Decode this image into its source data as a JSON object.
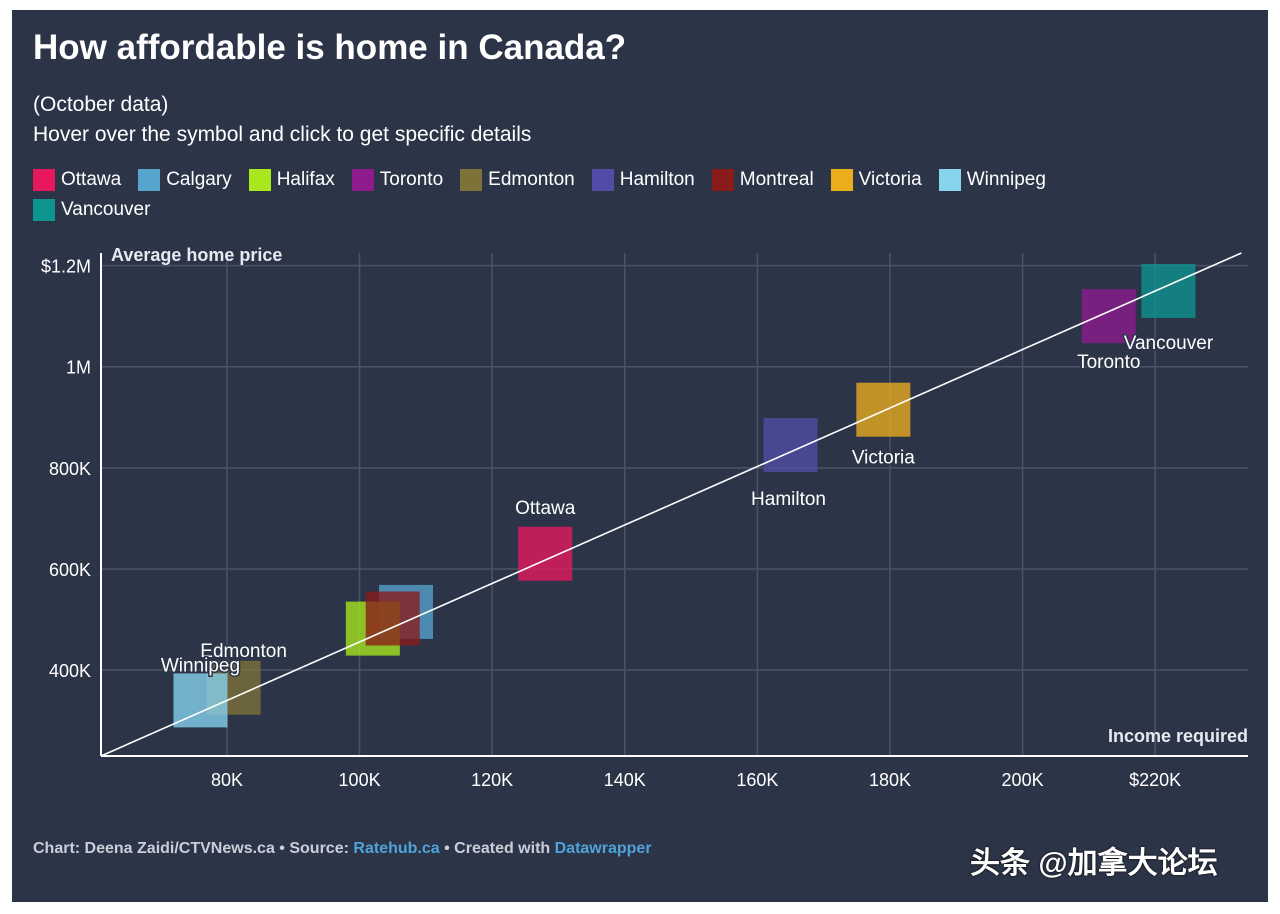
{
  "title": "How affordable is home in Canada?",
  "subtitle_lines": [
    "(October data)",
    "Hover over the symbol and click to get specific details"
  ],
  "footer": {
    "chart_credit": "Chart: Deena Zaidi/CTVNews.ca",
    "sep": "•",
    "source_label": "Source:",
    "source_link": "Ratehub.ca",
    "created_label": "Created with",
    "created_link": "Datawrapper"
  },
  "watermark": "头条 @加拿大论坛",
  "colors": {
    "background": "#2c3548",
    "grid": "#4b5467",
    "axis": "#ffffff",
    "trend": "#ffffff"
  },
  "chart_data": {
    "type": "scatter",
    "xlabel": "Income required",
    "ylabel": "Average home price",
    "xlim": [
      61000,
      234000
    ],
    "ylim": [
      230000,
      1225000
    ],
    "x_ticks": [
      80000,
      100000,
      120000,
      140000,
      160000,
      180000,
      200000,
      220000
    ],
    "x_tick_labels": [
      "80K",
      "100K",
      "120K",
      "140K",
      "160K",
      "180K",
      "200K",
      "$220K"
    ],
    "y_ticks": [
      400000,
      600000,
      800000,
      1000000,
      1200000
    ],
    "y_tick_labels": [
      "400K",
      "600K",
      "800K",
      "1M",
      "$1.2M"
    ],
    "grid": true,
    "legend_position": "top",
    "trend_line": [
      [
        61000,
        230000
      ],
      [
        233000,
        1225000
      ]
    ],
    "points": [
      {
        "name": "Ottawa",
        "x": 128000,
        "y": 630000,
        "color": "#e8185f",
        "label": "Ottawa"
      },
      {
        "name": "Calgary",
        "x": 107000,
        "y": 515000,
        "color": "#56a3cc",
        "label": ""
      },
      {
        "name": "Halifax",
        "x": 102000,
        "y": 482000,
        "color": "#a9e81c",
        "label": ""
      },
      {
        "name": "Toronto",
        "x": 213000,
        "y": 1100000,
        "color": "#8e1b8e",
        "label": "Toronto"
      },
      {
        "name": "Edmonton",
        "x": 81000,
        "y": 365000,
        "color": "#7f7238",
        "label": "Edmonton"
      },
      {
        "name": "Hamilton",
        "x": 165000,
        "y": 845000,
        "color": "#514da6",
        "label": "Hamilton"
      },
      {
        "name": "Montreal",
        "x": 105000,
        "y": 502000,
        "color": "#8a1b1b",
        "label": ""
      },
      {
        "name": "Victoria",
        "x": 179000,
        "y": 915000,
        "color": "#ecad1d",
        "label": "Victoria"
      },
      {
        "name": "Winnipeg",
        "x": 76000,
        "y": 340000,
        "color": "#88d4ef",
        "label": "Winnipeg"
      },
      {
        "name": "Vancouver",
        "x": 222000,
        "y": 1150000,
        "color": "#0d9590",
        "label": "Vancouver"
      }
    ]
  }
}
